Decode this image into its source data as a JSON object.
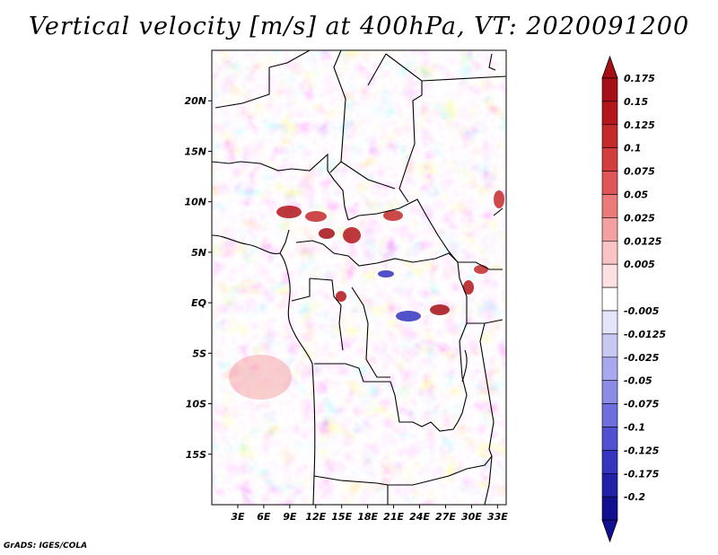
{
  "title": "Vertical velocity [m/s] at 400hPa, VT: 2020091200",
  "credit": "GrADS: IGES/COLA",
  "map": {
    "lat_range": [
      -20,
      25
    ],
    "lon_range": [
      0,
      34
    ],
    "lat_ticks": [
      {
        "value": 20,
        "label": "20N"
      },
      {
        "value": 15,
        "label": "15N"
      },
      {
        "value": 10,
        "label": "10N"
      },
      {
        "value": 5,
        "label": "5N"
      },
      {
        "value": 0,
        "label": "EQ"
      },
      {
        "value": -5,
        "label": "5S"
      },
      {
        "value": -10,
        "label": "10S"
      },
      {
        "value": -15,
        "label": "15S"
      }
    ],
    "lon_ticks": [
      {
        "value": 3,
        "label": "3E"
      },
      {
        "value": 6,
        "label": "6E"
      },
      {
        "value": 9,
        "label": "9E"
      },
      {
        "value": 12,
        "label": "12E"
      },
      {
        "value": 15,
        "label": "15E"
      },
      {
        "value": 18,
        "label": "18E"
      },
      {
        "value": 21,
        "label": "21E"
      },
      {
        "value": 24,
        "label": "24E"
      },
      {
        "value": 27,
        "label": "27E"
      },
      {
        "value": 30,
        "label": "30E"
      },
      {
        "value": 33,
        "label": "33E"
      }
    ]
  },
  "colorbar": {
    "levels": [
      {
        "label": "0.175",
        "color": "#a50f15"
      },
      {
        "label": "0.15",
        "color": "#b3171c"
      },
      {
        "label": "0.125",
        "color": "#c42a2a"
      },
      {
        "label": "0.1",
        "color": "#d43d3d"
      },
      {
        "label": "0.075",
        "color": "#e05656"
      },
      {
        "label": "0.05",
        "color": "#eb7a7a"
      },
      {
        "label": "0.025",
        "color": "#f4a0a0"
      },
      {
        "label": "0.0125",
        "color": "#f9c3c3"
      },
      {
        "label": "0.005",
        "color": "#fde0e0"
      },
      {
        "label": "",
        "color": "#ffffff"
      },
      {
        "label": "-0.005",
        "color": "#e4e4fb"
      },
      {
        "label": "-0.0125",
        "color": "#c8c8f5"
      },
      {
        "label": "-0.025",
        "color": "#a8a8ee"
      },
      {
        "label": "-0.05",
        "color": "#8c8ce6"
      },
      {
        "label": "-0.075",
        "color": "#6e6ede"
      },
      {
        "label": "-0.1",
        "color": "#5050d0"
      },
      {
        "label": "-0.125",
        "color": "#3535c0"
      },
      {
        "label": "-0.175",
        "color": "#2020a8"
      },
      {
        "label": "-0.2",
        "color": "#101090"
      }
    ],
    "top_color": "#a50f15",
    "bottom_color": "#101090"
  }
}
